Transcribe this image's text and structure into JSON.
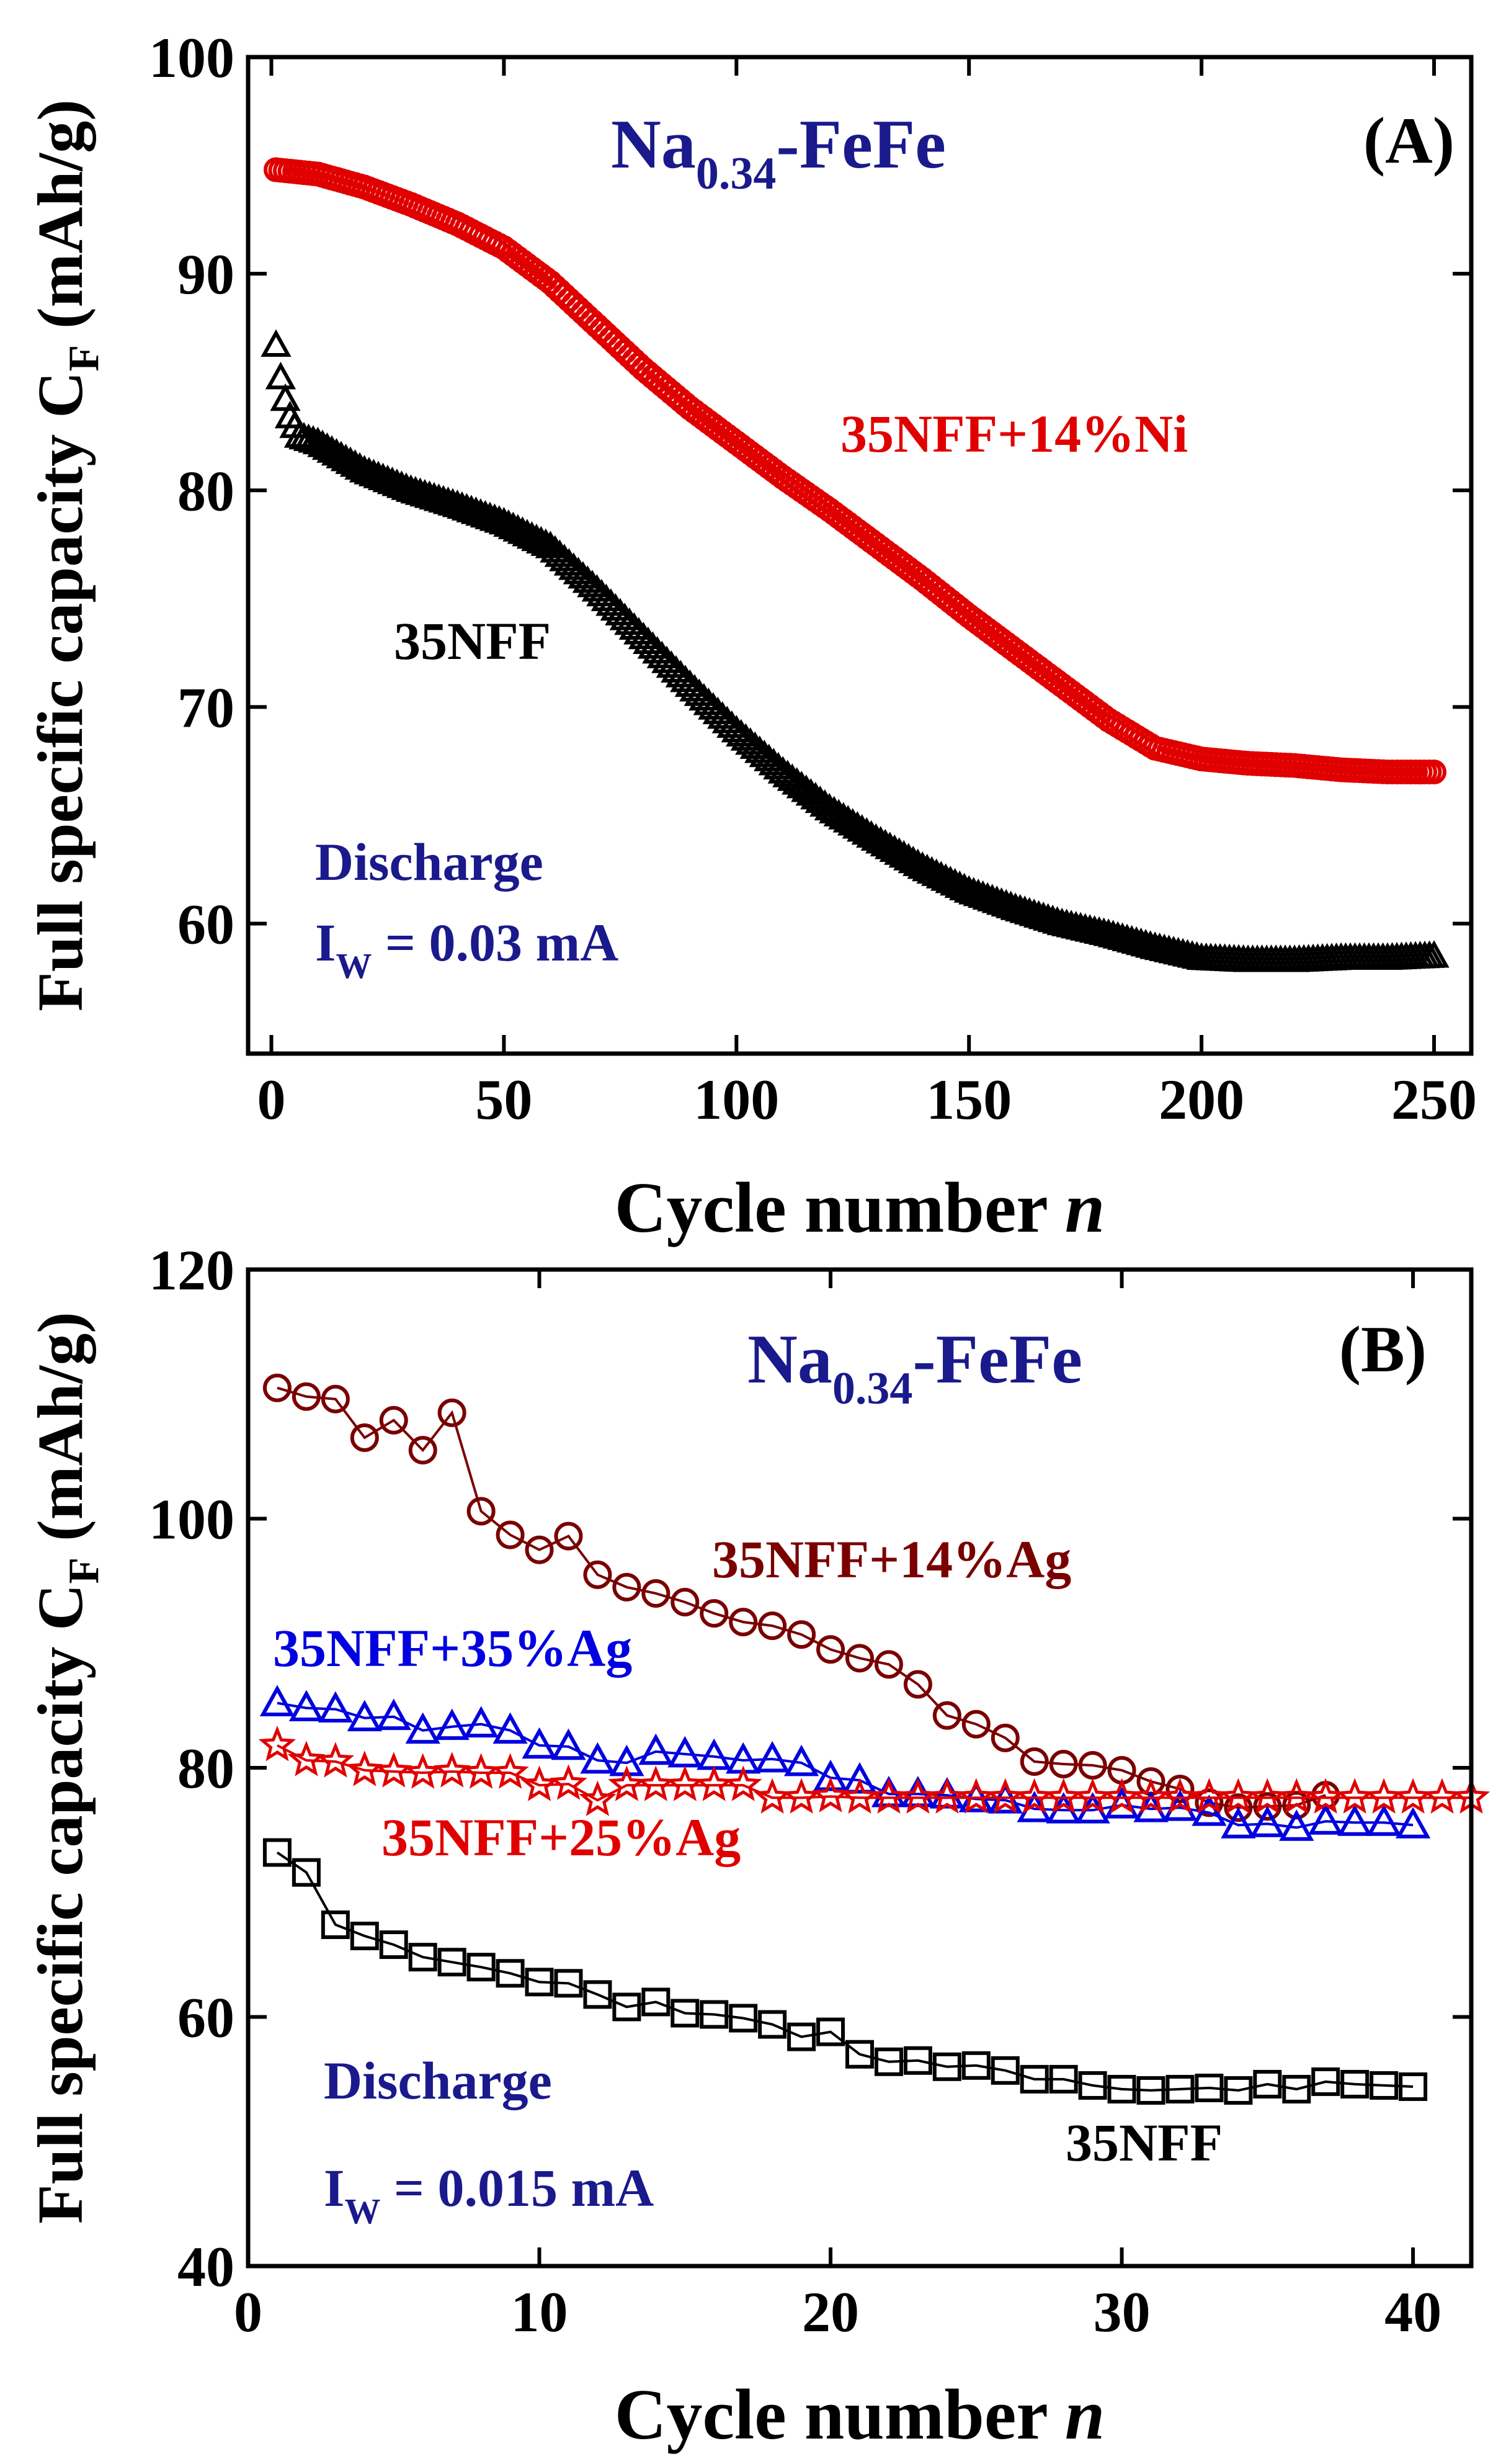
{
  "chart_data": [
    {
      "panel": "(A)",
      "type": "scatter",
      "title": "Na0.34-FeFe",
      "title_main": "Na",
      "title_sub": "0.34",
      "title_rest": "-FeFe",
      "xlabel_main": "Cycle number ",
      "xlabel_italic": "n",
      "ylabel_main": "Full specific capacity C",
      "ylabel_sub": "F",
      "ylabel_rest": " (mAh/g)",
      "xlim": [
        -5,
        258
      ],
      "ylim": [
        54,
        100
      ],
      "xticks": [
        0,
        50,
        100,
        150,
        200,
        250
      ],
      "yticks": [
        60,
        70,
        80,
        90,
        100
      ],
      "annotations": {
        "mode": "Discharge",
        "current_main": "I",
        "current_sub": "W",
        "current_rest": " = 0.03 mA"
      },
      "series": [
        {
          "name": "35NFF+14%Ni",
          "color": "#e00000",
          "marker": "circle",
          "x": [
            1,
            10,
            20,
            30,
            40,
            50,
            60,
            70,
            80,
            90,
            100,
            110,
            120,
            130,
            140,
            150,
            160,
            170,
            180,
            190,
            200,
            210,
            220,
            230,
            240,
            250
          ],
          "values": [
            94.8,
            94.6,
            94.0,
            93.2,
            92.3,
            91.2,
            89.6,
            87.6,
            85.6,
            83.8,
            82.2,
            80.6,
            79.1,
            77.5,
            75.9,
            74.2,
            72.6,
            71.0,
            69.4,
            68.1,
            67.6,
            67.4,
            67.3,
            67.1,
            67.0,
            67.0
          ]
        },
        {
          "name": "35NFF",
          "color": "#000000",
          "marker": "triangle",
          "x": [
            1,
            2,
            3,
            4,
            6,
            10,
            20,
            30,
            40,
            50,
            60,
            70,
            80,
            90,
            100,
            110,
            120,
            130,
            140,
            150,
            160,
            170,
            180,
            190,
            200,
            210,
            220,
            230,
            240,
            250
          ],
          "values": [
            86.7,
            85.2,
            84.2,
            83.4,
            82.5,
            82.2,
            80.9,
            80.0,
            79.3,
            78.5,
            77.4,
            75.4,
            73.2,
            71.0,
            68.9,
            67.0,
            65.3,
            63.9,
            62.6,
            61.5,
            60.7,
            60.0,
            59.5,
            58.9,
            58.4,
            58.3,
            58.3,
            58.4,
            58.4,
            58.5
          ]
        }
      ]
    },
    {
      "panel": "(B)",
      "type": "line",
      "title": "Na0.34-FeFe",
      "title_main": "Na",
      "title_sub": "0.34",
      "title_rest": "-FeFe",
      "xlabel_main": "Cycle number ",
      "xlabel_italic": "n",
      "ylabel_main": "Full specific capacity C",
      "ylabel_sub": "F",
      "ylabel_rest": " (mAh/g)",
      "xlim": [
        0,
        42
      ],
      "ylim": [
        40,
        120
      ],
      "xticks": [
        0,
        10,
        20,
        30,
        40
      ],
      "yticks": [
        40,
        60,
        80,
        100,
        120
      ],
      "annotations": {
        "mode": "Discharge",
        "current_main": "I",
        "current_sub": "W",
        "current_rest": " = 0.015 mA"
      },
      "series": [
        {
          "name": "35NFF+14%Ag",
          "color": "#7a0000",
          "marker": "circle",
          "x": [
            1,
            2,
            3,
            4,
            5,
            6,
            7,
            8,
            9,
            10,
            11,
            12,
            13,
            14,
            15,
            16,
            17,
            18,
            19,
            20,
            21,
            22,
            23,
            24,
            25,
            26,
            27,
            28,
            29,
            30,
            31,
            32,
            33,
            34,
            35,
            36,
            37
          ],
          "values": [
            110.5,
            109.8,
            109.6,
            106.5,
            107.9,
            105.5,
            108.5,
            100.6,
            98.7,
            97.5,
            98.6,
            95.5,
            94.5,
            94.0,
            93.3,
            92.4,
            91.7,
            91.4,
            90.7,
            89.5,
            88.8,
            88.3,
            86.7,
            84.2,
            83.5,
            82.4,
            80.5,
            80.3,
            80.2,
            79.8,
            78.9,
            78.3,
            77.2,
            76.8,
            76.9,
            77.0,
            77.8
          ]
        },
        {
          "name": "35NFF+35%Ag",
          "color": "#0000e0",
          "marker": "triangle",
          "x": [
            1,
            2,
            3,
            4,
            5,
            6,
            7,
            8,
            9,
            10,
            11,
            12,
            13,
            14,
            15,
            16,
            17,
            18,
            19,
            20,
            21,
            22,
            23,
            24,
            25,
            26,
            27,
            28,
            29,
            30,
            31,
            32,
            33,
            34,
            35,
            36,
            37,
            38,
            39,
            40
          ],
          "values": [
            85.2,
            84.8,
            84.7,
            84.0,
            84.1,
            83.0,
            83.3,
            83.5,
            83.0,
            81.8,
            81.7,
            80.6,
            80.4,
            81.3,
            81.1,
            80.9,
            80.6,
            80.7,
            80.4,
            79.2,
            79.0,
            77.9,
            77.9,
            77.8,
            77.5,
            77.4,
            76.7,
            76.6,
            76.6,
            77.0,
            76.7,
            76.8,
            76.4,
            75.4,
            75.5,
            75.2,
            75.7,
            75.6,
            75.6,
            75.4
          ]
        },
        {
          "name": "35NFF+25%Ag",
          "color": "#e00000",
          "marker": "star",
          "x": [
            1,
            2,
            3,
            4,
            5,
            6,
            7,
            8,
            9,
            10,
            11,
            12,
            13,
            14,
            15,
            16,
            17,
            18,
            19,
            20,
            21,
            22,
            23,
            24,
            25,
            26,
            27,
            28,
            29,
            30,
            31,
            32,
            33,
            34,
            35,
            36,
            37,
            38,
            39,
            40,
            41,
            42
          ],
          "values": [
            81.8,
            80.6,
            80.5,
            79.8,
            79.7,
            79.6,
            79.7,
            79.6,
            79.6,
            78.6,
            78.7,
            77.4,
            78.6,
            78.6,
            78.6,
            78.6,
            78.6,
            77.6,
            77.6,
            77.7,
            77.6,
            77.6,
            77.6,
            77.6,
            77.6,
            77.6,
            77.6,
            77.6,
            77.6,
            77.6,
            77.6,
            77.6,
            77.6,
            77.6,
            77.6,
            77.6,
            77.6,
            77.6,
            77.6,
            77.6,
            77.6,
            77.6
          ]
        },
        {
          "name": "35NFF",
          "color": "#000000",
          "marker": "square",
          "x": [
            1,
            2,
            3,
            4,
            5,
            6,
            7,
            8,
            9,
            10,
            11,
            12,
            13,
            14,
            15,
            16,
            17,
            18,
            19,
            20,
            21,
            22,
            23,
            24,
            25,
            26,
            27,
            28,
            29,
            30,
            31,
            32,
            33,
            34,
            35,
            36,
            37,
            38,
            39,
            40
          ],
          "values": [
            73.2,
            71.6,
            67.4,
            66.5,
            65.8,
            64.8,
            64.4,
            64.0,
            63.5,
            62.8,
            62.7,
            61.8,
            60.8,
            61.2,
            60.3,
            60.2,
            59.9,
            59.4,
            58.4,
            58.8,
            57.0,
            56.4,
            56.5,
            56.0,
            56.1,
            55.7,
            55.0,
            55.0,
            54.5,
            54.2,
            54.1,
            54.2,
            54.3,
            54.1,
            54.6,
            54.2,
            54.8,
            54.6,
            54.5,
            54.4
          ]
        }
      ]
    }
  ]
}
